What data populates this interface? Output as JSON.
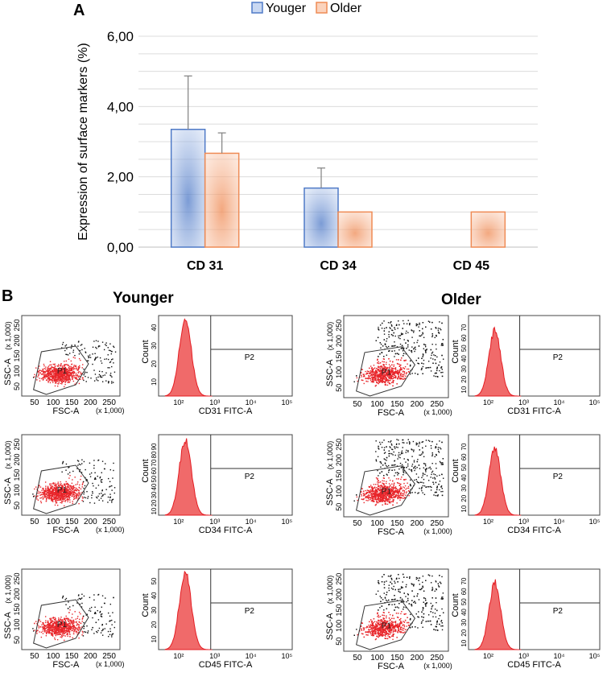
{
  "figure": {
    "panel_a_label": "A",
    "panel_b_label": "B",
    "younger_title": "Younger",
    "older_title": "Older"
  },
  "chart_data": [
    {
      "type": "bar",
      "title": "",
      "categories": [
        "CD 31",
        "CD 34",
        "CD 45"
      ],
      "series": [
        {
          "name": "Youger",
          "values": [
            3.35,
            1.68,
            null
          ],
          "errors": [
            1.52,
            0.57,
            null
          ],
          "color": "#4f7ac7",
          "fill": "#c9d8f2"
        },
        {
          "name": "Older",
          "values": [
            2.67,
            1.0,
            1.0
          ],
          "errors": [
            0.58,
            0.0,
            0.0
          ],
          "color": "#ef8b55",
          "fill": "#fbd3bd"
        }
      ],
      "ylabel": "Expression of surface markers (%)",
      "ylim": [
        0,
        6
      ],
      "yticks": [
        "0,00",
        "2,00",
        "4,00",
        "6,00"
      ],
      "ytick_values": [
        0,
        2,
        4,
        6
      ],
      "legend": "top-center",
      "grid": true
    },
    {
      "type": "flow-cytometry-panels",
      "scatter": {
        "xlabel": "FSC-A",
        "xunit": "(x 1,000)",
        "ylabel": "SSC-A",
        "yunit": "(x 1,000)",
        "xticks": [
          "50",
          "100",
          "150",
          "200",
          "250"
        ],
        "yticks": [
          "50",
          "100",
          "150",
          "200",
          "250"
        ],
        "gate": "P1"
      },
      "histogram": {
        "ylabel": "Count",
        "gate": "P2",
        "yticks_older": [
          "10",
          "20",
          "30",
          "40",
          "50",
          "60",
          "70"
        ],
        "yticks_younger_row1": [
          "10",
          "20",
          "30",
          "40"
        ],
        "yticks_younger_row2": [
          "10",
          "20",
          "30",
          "40",
          "50",
          "60",
          "70",
          "80",
          "90"
        ],
        "yticks_younger_row3": [
          "10",
          "20",
          "30",
          "40",
          "50"
        ]
      },
      "markers": [
        "CD31 FITC-A",
        "CD34 FITC-A",
        "CD45 FITC-A"
      ],
      "groups": [
        "Younger",
        "Older"
      ]
    }
  ]
}
